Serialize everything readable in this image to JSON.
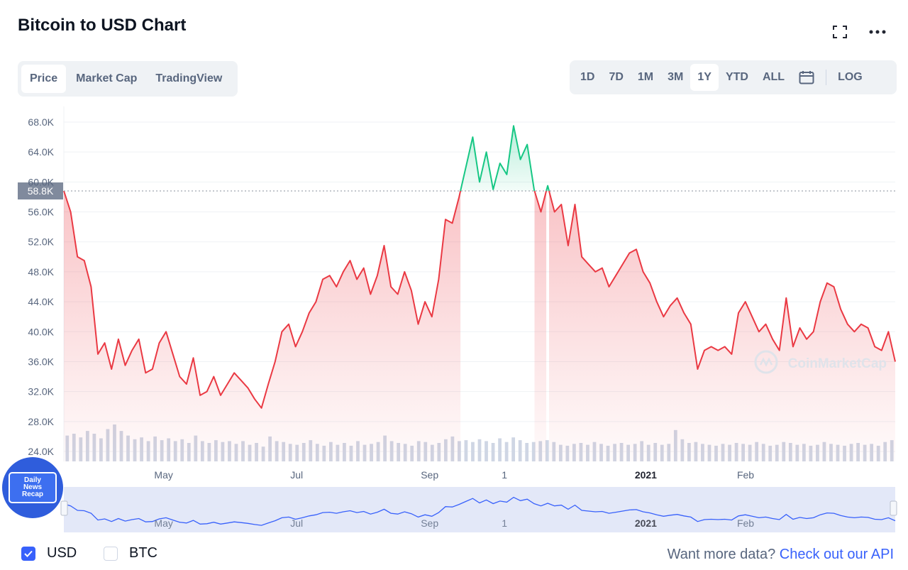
{
  "header": {
    "title": "Bitcoin to USD Chart",
    "icons": [
      "fullscreen-icon",
      "more-icon"
    ]
  },
  "tabs": [
    "Price",
    "Market Cap",
    "TradingView"
  ],
  "active_tab": "Price",
  "ranges": [
    "1D",
    "7D",
    "1M",
    "3M",
    "1Y",
    "YTD",
    "ALL"
  ],
  "active_range": "1Y",
  "log_label": "LOG",
  "current_price_label": "58.8K",
  "watermark": "CoinMarketCap",
  "badge": {
    "line1": "Daily",
    "line2": "News",
    "line3": "Recap"
  },
  "legend": {
    "usd": "USD",
    "btc": "BTC",
    "usd_checked": true,
    "btc_checked": false
  },
  "footer": {
    "prefix": "Want more data?",
    "link": "Check out our API"
  },
  "colors": {
    "up": "#16c784",
    "down": "#ea3943",
    "accent": "#3861fb",
    "axis_text": "#58667e"
  },
  "chart_data": {
    "type": "area",
    "ylim": [
      24000,
      70000
    ],
    "reference_value": 58800,
    "reference_label": "58.8K",
    "y_ticks": [
      {
        "value": 68000,
        "label": "68.0K"
      },
      {
        "value": 64000,
        "label": "64.0K"
      },
      {
        "value": 60000,
        "label": "60.0K"
      },
      {
        "value": 56000,
        "label": "56.0K"
      },
      {
        "value": 52000,
        "label": "52.0K"
      },
      {
        "value": 48000,
        "label": "48.0K"
      },
      {
        "value": 44000,
        "label": "44.0K"
      },
      {
        "value": 40000,
        "label": "40.0K"
      },
      {
        "value": 36000,
        "label": "36.0K"
      },
      {
        "value": 32000,
        "label": "32.0K"
      },
      {
        "value": 28000,
        "label": "28.0K"
      },
      {
        "value": 24000,
        "label": "24.0K"
      }
    ],
    "x_ticks": [
      {
        "t": 0.12,
        "label": "May",
        "bold": false
      },
      {
        "t": 0.28,
        "label": "Jul",
        "bold": false
      },
      {
        "t": 0.44,
        "label": "Sep",
        "bold": false
      },
      {
        "t": 0.53,
        "label": "1",
        "bold": false
      },
      {
        "t": 0.7,
        "label": "2021",
        "bold": true
      },
      {
        "t": 0.82,
        "label": "Feb",
        "bold": false
      }
    ],
    "series": [
      {
        "values": [
          58800,
          56000,
          50000,
          49500,
          46000,
          37000,
          38500,
          35000,
          39000,
          35500,
          37500,
          39000,
          34500,
          35000,
          38500,
          40000,
          37000,
          34000,
          33000,
          36500,
          31500,
          32000,
          34000,
          31500,
          33000,
          34500,
          33500,
          32500,
          31000,
          29800,
          33000,
          36000,
          40000,
          41000,
          38000,
          40000,
          42500,
          44000,
          47000,
          47500,
          46000,
          48000,
          49500,
          47000,
          48500,
          45000,
          47500,
          51500,
          46000,
          45000,
          48000,
          45500,
          41000,
          44000,
          42000,
          47000,
          55000,
          54500,
          58000,
          62000,
          66000,
          60000,
          64000,
          59000,
          62500,
          61000,
          67500,
          63000,
          65000,
          59000,
          56000,
          59500,
          56000,
          57000,
          51500,
          57000,
          50000,
          49000,
          48000,
          48500,
          46000,
          47500,
          49000,
          50500,
          51000,
          48000,
          46500,
          44000,
          42000,
          43500,
          44500,
          42500,
          41000,
          35000,
          37500,
          38000,
          37500,
          38000,
          37000,
          42500,
          44000,
          42000,
          40000,
          41000,
          39000,
          37500,
          44500,
          38000,
          40500,
          39000,
          40000,
          44000,
          46500,
          46000,
          43000,
          41000,
          40000,
          41000,
          40500,
          38000,
          37500,
          40000,
          36000
        ],
        "up_color": "#16c784",
        "down_color": "#ea3943"
      }
    ],
    "volume": [
      28,
      30,
      26,
      33,
      30,
      25,
      35,
      40,
      33,
      28,
      24,
      26,
      22,
      27,
      23,
      25,
      22,
      24,
      20,
      28,
      22,
      20,
      23,
      21,
      22,
      19,
      22,
      18,
      20,
      16,
      27,
      22,
      21,
      19,
      18,
      20,
      23,
      19,
      17,
      21,
      18,
      20,
      17,
      22,
      18,
      19,
      21,
      28,
      22,
      20,
      19,
      17,
      22,
      21,
      18,
      20,
      24,
      27,
      22,
      23,
      21,
      24,
      22,
      20,
      25,
      21,
      26,
      23,
      20,
      21,
      22,
      23,
      21,
      18,
      17,
      19,
      20,
      18,
      21,
      19,
      17,
      19,
      20,
      18,
      19,
      22,
      18,
      20,
      18,
      19,
      34,
      24,
      20,
      21,
      19,
      18,
      17,
      19,
      18,
      20,
      19,
      18,
      21,
      19,
      17,
      18,
      21,
      20,
      18,
      19,
      17,
      18,
      21,
      19,
      18,
      17,
      19,
      20,
      18,
      19,
      17,
      21,
      23
    ]
  }
}
